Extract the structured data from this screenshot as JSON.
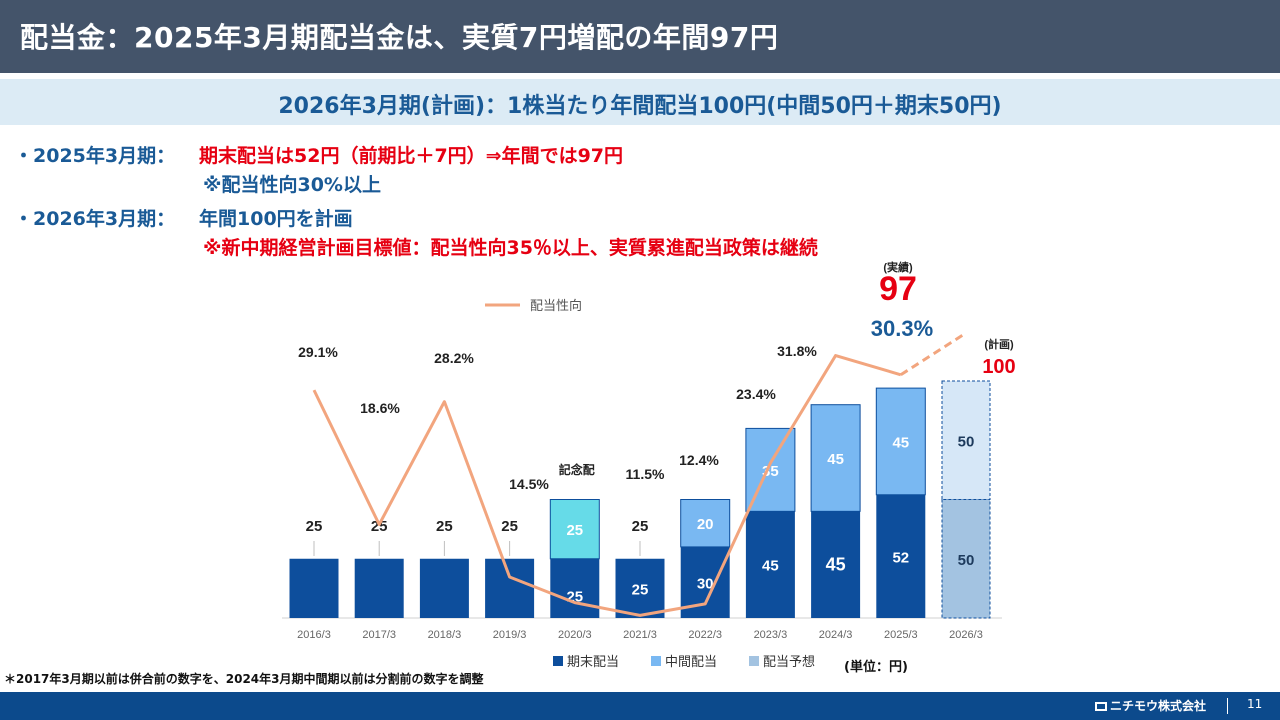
{
  "title": "配当金：2025年3月期配当金は、実質7円増配の年間97円",
  "subtitle": "2026年3月期(計画)：1株当たり年間配当100円(中間50円＋期末50円)",
  "bullets": {
    "b1_label": "・2025年3月期：",
    "b1_text": "期末配当は52円（前期比＋7円）⇒年間では97円",
    "b1_note": "※配当性向30%以上",
    "b2_label": "・2026年3月期：",
    "b2_text": "年間100円を計画",
    "b2_note": "※新中期経営計画目標値：配当性向35％以上、実質累進配当政策は継続"
  },
  "footnote": "＊2017年3月期以前は併合前の数字を、2024年3月期中間期以前は分割前の数字を調整",
  "company": "ニチモウ株式会社",
  "page_number": "11",
  "unit_label": "(単位：円)",
  "colors": {
    "title_bg": "#44546a",
    "sub_bg": "#dcebf5",
    "accent_blue": "#1a5a96",
    "accent_red": "#e60012",
    "year_end": "#0d4e9c",
    "interim": "#79b8f2",
    "commemorative": "#66dbe8",
    "forecast": "#a3c3e1",
    "payout_line": "#f2a57e",
    "footer_bg": "#0c4a8c"
  },
  "chart_data": {
    "type": "bar",
    "stacked": true,
    "categories": [
      "2016/3",
      "2017/3",
      "2018/3",
      "2019/3",
      "2020/3",
      "2021/3",
      "2022/3",
      "2023/3",
      "2024/3",
      "2025/3",
      "2026/3"
    ],
    "series": [
      {
        "name": "期末配当",
        "values": [
          25,
          25,
          25,
          25,
          25,
          25,
          30,
          45,
          45,
          52,
          null
        ]
      },
      {
        "name": "中間配当",
        "values": [
          null,
          null,
          null,
          null,
          null,
          null,
          20,
          35,
          45,
          45,
          null
        ]
      },
      {
        "name": "配当予想",
        "values": [
          null,
          null,
          null,
          null,
          null,
          null,
          null,
          null,
          null,
          null,
          50
        ]
      }
    ],
    "commemorative": {
      "category": "2020/3",
      "value": 25,
      "label": "記念配"
    },
    "forecast_interim": {
      "category": "2026/3",
      "value": 50
    },
    "payout_ratio": {
      "name": "配当性向",
      "values": [
        29.1,
        18.6,
        28.2,
        14.5,
        null,
        11.5,
        12.4,
        23.4,
        31.8,
        30.3,
        null
      ],
      "labels": [
        "29.1%",
        "18.6%",
        "28.2%",
        "14.5%",
        "",
        "11.5%",
        "12.4%",
        "23.4%",
        "31.8%",
        "30.3%",
        ""
      ]
    },
    "bar_labels": {
      "year_end": [
        "25",
        "25",
        "25",
        "25",
        "25",
        "25",
        "30",
        "45",
        "45",
        "52",
        "50"
      ],
      "interim": [
        "",
        "",
        "",
        "",
        "25",
        "",
        "20",
        "35",
        "45",
        "45",
        "50"
      ],
      "top_totals": [
        "25",
        "25",
        "25",
        "25",
        "",
        "25",
        "",
        "",
        "",
        "",
        ""
      ]
    },
    "callouts": {
      "actual_tag": "(実績)",
      "actual_value": "97",
      "plan_tag": "(計画)",
      "plan_value": "100"
    },
    "legend": [
      "期末配当",
      "中間配当",
      "配当予想"
    ],
    "legend_line": "配当性向",
    "legend_position": "bottom"
  }
}
